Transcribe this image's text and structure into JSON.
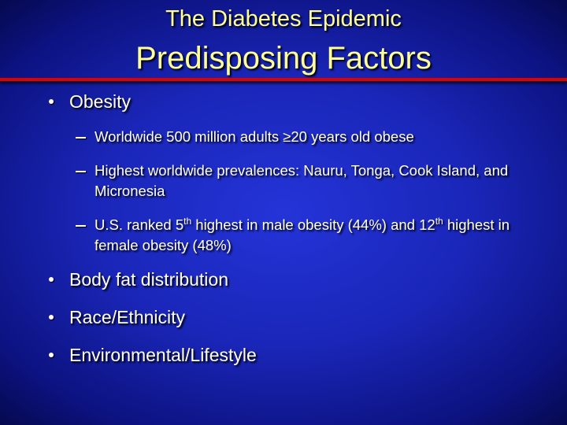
{
  "header": {
    "title": "The Diabetes Epidemic",
    "subtitle": "Predisposing Factors"
  },
  "bullets": [
    {
      "text": "Obesity",
      "subs": [
        [
          {
            "text": "Worldwide 500 million adults ≥20 years old obese"
          }
        ],
        [
          {
            "text": "Highest worldwide prevalences: Nauru, Tonga, Cook Island, and Micronesia"
          }
        ],
        [
          {
            "text": "U.S. ranked 5"
          },
          {
            "sup": "th"
          },
          {
            "text": " highest in male obesity (44%) and 12"
          },
          {
            "sup": "th"
          },
          {
            "text": " highest in female obesity (48%)"
          }
        ]
      ]
    },
    {
      "text": "Body fat distribution"
    },
    {
      "text": "Race/Ethnicity"
    },
    {
      "text": "Environmental/Lifestyle"
    }
  ]
}
